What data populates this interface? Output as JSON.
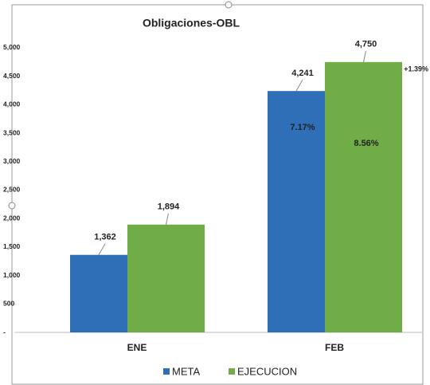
{
  "chart_data": {
    "type": "bar",
    "title": "Obligaciones-OBL",
    "categories": [
      "ENE",
      "FEB"
    ],
    "series": [
      {
        "name": "META",
        "color": "#2e6fb7",
        "values": [
          1362,
          4241
        ],
        "value_labels": [
          "1,362",
          "4,241"
        ]
      },
      {
        "name": "EJECUCION",
        "color": "#70ad47",
        "values": [
          1894,
          4750
        ],
        "value_labels": [
          "1,894",
          "4,750"
        ]
      }
    ],
    "annotations": [
      "7.17%",
      "8.56%",
      "+1.39%"
    ],
    "ylim": [
      0,
      5700
    ],
    "yticks": [
      {
        "value": 0,
        "label": "-"
      },
      500,
      {
        "value": 1000,
        "label": "1,000"
      },
      {
        "value": 1500,
        "label": "1,500"
      },
      {
        "value": 2000,
        "label": "2,000"
      },
      {
        "value": 2500,
        "label": "2,500"
      },
      {
        "value": 3000,
        "label": "3,000"
      },
      {
        "value": 3500,
        "label": "3,500"
      },
      {
        "value": 4000,
        "label": "4,000"
      },
      {
        "value": 4500,
        "label": "4,500"
      },
      {
        "value": 5000,
        "label": "5,000"
      }
    ],
    "legend": "bottom"
  }
}
